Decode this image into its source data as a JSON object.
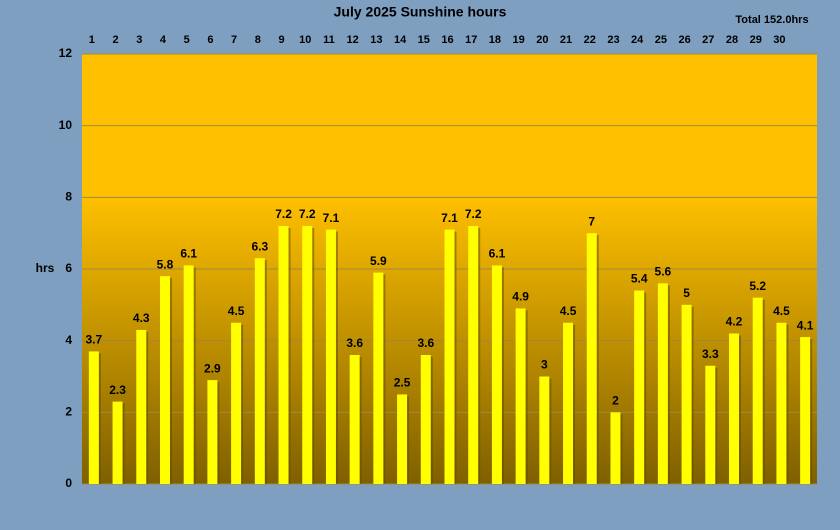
{
  "chart_data": {
    "type": "bar",
    "title": "July 2025 Sunshine hours",
    "annotation": "Total 152.0hrs",
    "y_label": "hrs",
    "categories": [
      "1",
      "2",
      "3",
      "4",
      "5",
      "6",
      "7",
      "8",
      "9",
      "10",
      "11",
      "12",
      "13",
      "14",
      "15",
      "16",
      "17",
      "18",
      "19",
      "20",
      "21",
      "22",
      "23",
      "24",
      "25",
      "26",
      "27",
      "28",
      "29",
      "30",
      null
    ],
    "values": [
      3.7,
      2.3,
      4.3,
      5.8,
      6.1,
      2.9,
      4.5,
      6.3,
      7.2,
      7.2,
      7.1,
      3.6,
      5.9,
      2.5,
      3.6,
      7.1,
      7.2,
      6.1,
      4.9,
      3,
      4.5,
      7,
      2,
      5.4,
      5.6,
      5,
      3.3,
      4.2,
      5.2,
      4.5,
      4.1
    ],
    "color": "#ffff00",
    "ylim": [
      0,
      12
    ],
    "yticks": [
      0,
      2,
      4,
      6,
      8,
      10,
      12
    ],
    "grid": true,
    "value_labels_shown": true
  }
}
